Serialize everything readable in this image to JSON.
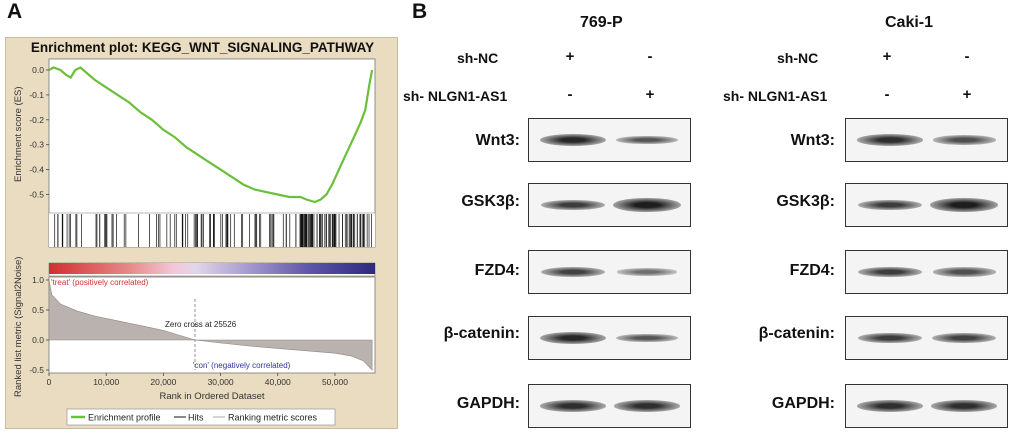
{
  "panel_a": {
    "letter": "A",
    "title": "Enrichment plot: KEGG_WNT_SIGNALING_PATHWAY",
    "y_axis_top": "Enrichment score (ES)",
    "y_axis_bottom": "Ranked list metric (Signal2Noise)",
    "x_axis": "Rank in Ordered Dataset",
    "treat_label": "'treat' (positively correlated)",
    "con_label": "'con' (negatively correlated)",
    "zero_cross": "Zero cross at 25526",
    "legend": {
      "enrichment": "Enrichment profile",
      "hits": "Hits",
      "ranking": "Ranking metric scores"
    },
    "colors": {
      "es_line": "#6bbf3a",
      "treat": "#cc3333",
      "con": "#333399"
    }
  },
  "panel_b": {
    "letter": "B",
    "cell_lines": [
      {
        "name": "769-P",
        "sh_nc_label": "sh-NC",
        "sh_kd_label": "sh- NLGN1-AS1",
        "sh_nc_signs": [
          "+",
          "-"
        ],
        "sh_kd_signs": [
          "-",
          "+"
        ],
        "proteins": [
          {
            "label": "Wnt3:",
            "intensities": [
              1.0,
              0.65
            ]
          },
          {
            "label": "GSK3β:",
            "intensities": [
              0.85,
              1.25
            ]
          },
          {
            "label": "FZD4:",
            "intensities": [
              0.8,
              0.45
            ]
          },
          {
            "label": "β-catenin:",
            "intensities": [
              1.0,
              0.65
            ]
          },
          {
            "label": "GAPDH:",
            "intensities": [
              0.95,
              0.95
            ]
          }
        ]
      },
      {
        "name": "Caki-1",
        "sh_nc_label": "sh-NC",
        "sh_kd_label": "sh- NLGN1-AS1",
        "sh_nc_signs": [
          "+",
          "-"
        ],
        "sh_kd_signs": [
          "-",
          "+"
        ],
        "proteins": [
          {
            "label": "Wnt3:",
            "intensities": [
              0.95,
              0.7
            ]
          },
          {
            "label": "GSK3β:",
            "intensities": [
              0.85,
              1.2
            ]
          },
          {
            "label": "FZD4:",
            "intensities": [
              0.85,
              0.7
            ]
          },
          {
            "label": "β-catenin:",
            "intensities": [
              0.85,
              0.8
            ]
          },
          {
            "label": "GAPDH:",
            "intensities": [
              0.95,
              0.95
            ]
          }
        ]
      }
    ]
  },
  "chart_data": {
    "type": "line",
    "title": "Enrichment plot: KEGG_WNT_SIGNALING_PATHWAY",
    "xlabel": "Rank in Ordered Dataset",
    "ylabel": "Enrichment score (ES)",
    "xlim": [
      0,
      57000
    ],
    "ylim": [
      -0.55,
      0.02
    ],
    "x_ticks": [
      "0",
      "10,000",
      "20,000",
      "30,000",
      "40,000",
      "50,000"
    ],
    "x_tick_values": [
      0,
      10000,
      20000,
      30000,
      40000,
      50000
    ],
    "y_ticks": [
      "0.0",
      "-0.1",
      "-0.2",
      "-0.3",
      "-0.4",
      "-0.5"
    ],
    "y_tick_values": [
      0.0,
      -0.1,
      -0.2,
      -0.3,
      -0.4,
      -0.5
    ],
    "series": [
      {
        "name": "Enrichment profile",
        "x": [
          0,
          800,
          2000,
          3000,
          3800,
          4600,
          5500,
          6500,
          8000,
          10000,
          12000,
          14000,
          16000,
          18000,
          20000,
          22000,
          24000,
          26000,
          28000,
          30000,
          32000,
          34000,
          36000,
          38000,
          40000,
          42000,
          44000,
          45000,
          46500,
          47500,
          48500,
          49500,
          50500,
          51500,
          52500,
          53500,
          54500,
          55300,
          56000,
          56500
        ],
        "y": [
          0.0,
          0.01,
          0.0,
          -0.02,
          -0.03,
          0.0,
          0.01,
          -0.01,
          -0.04,
          -0.07,
          -0.1,
          -0.13,
          -0.17,
          -0.2,
          -0.24,
          -0.27,
          -0.31,
          -0.34,
          -0.37,
          -0.4,
          -0.43,
          -0.46,
          -0.48,
          -0.49,
          -0.5,
          -0.51,
          -0.51,
          -0.52,
          -0.53,
          -0.52,
          -0.5,
          -0.46,
          -0.41,
          -0.36,
          -0.31,
          -0.26,
          -0.21,
          -0.16,
          -0.06,
          0.0
        ]
      }
    ],
    "ranked_metric": {
      "ylabel": "Ranked list metric (Signal2Noise)",
      "ylim": [
        -0.5,
        1.0
      ],
      "y_ticks": [
        "1.0",
        "0.5",
        "0.0",
        "-0.5"
      ],
      "y_tick_values": [
        1.0,
        0.5,
        0.0,
        -0.5
      ],
      "zero_cross": 25526,
      "x": [
        0,
        500,
        2000,
        5000,
        8000,
        12000,
        16000,
        20000,
        25526,
        30000,
        35000,
        40000,
        45000,
        50000,
        53000,
        55000,
        56500
      ],
      "y": [
        1.0,
        0.75,
        0.6,
        0.48,
        0.4,
        0.32,
        0.24,
        0.16,
        0.0,
        -0.05,
        -0.1,
        -0.14,
        -0.18,
        -0.22,
        -0.27,
        -0.35,
        -0.5
      ]
    }
  }
}
